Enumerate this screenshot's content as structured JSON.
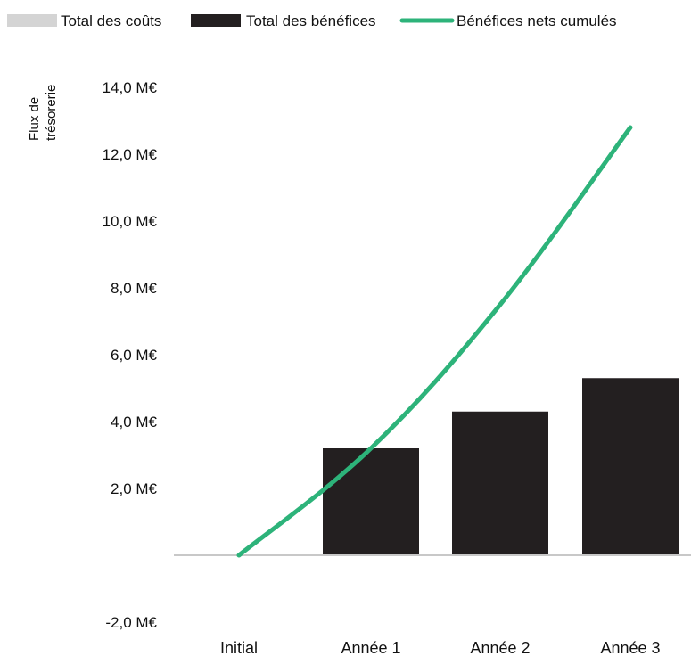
{
  "chart_data": {
    "type": "bar",
    "categories": [
      "Initial",
      "Année 1",
      "Année 2",
      "Année 3"
    ],
    "series": [
      {
        "name": "Total des coûts",
        "kind": "bar",
        "color": "#d4d4d4",
        "values": [
          0,
          0,
          0,
          0
        ]
      },
      {
        "name": "Total des bénéfices",
        "kind": "bar",
        "color": "#231f20",
        "values": [
          0,
          3.2,
          4.3,
          5.3
        ]
      },
      {
        "name": "Bénéfices nets cumulés",
        "kind": "line",
        "color": "#2db37a",
        "values": [
          0,
          3.2,
          7.5,
          12.8
        ]
      }
    ],
    "ylabel_lines": [
      "Flux de",
      "trésorerie"
    ],
    "ylim": [
      -2,
      14
    ],
    "yticks": [
      -2,
      0,
      2,
      4,
      6,
      8,
      10,
      12,
      14
    ],
    "ytick_labels": [
      "-2,0 M€",
      "",
      "2,0 M€",
      "4,0 M€",
      "6,0 M€",
      "8,0 M€",
      "10,0 M€",
      "12,0 M€",
      "14,0 M€"
    ],
    "legend_position": "top-left",
    "grid": false
  }
}
